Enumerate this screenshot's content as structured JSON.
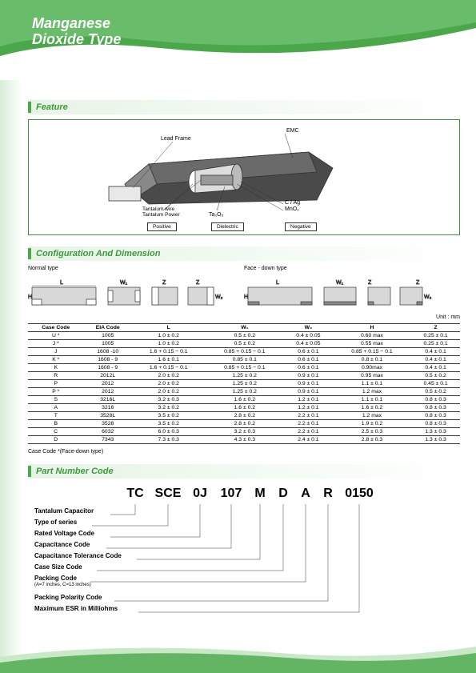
{
  "header": {
    "title_line1": "Manganese",
    "title_line2": "Dioxide Type"
  },
  "sections": {
    "feature": "Feature",
    "config": "Configuration And Dimension",
    "partcode": "Part Number Code"
  },
  "feature": {
    "labels": {
      "leadframe": "Lead Frame",
      "emc": "EMC",
      "tantalum_wire": "Tantalum wire",
      "tantalum_power": "Tantalum Power",
      "ta2o5": "Ta₂O₅",
      "cag": "C / Ag",
      "mno2": "MnO₂"
    },
    "terminals": {
      "positive": "Positive",
      "dielectric": "Dielectric",
      "negative": "Negative"
    }
  },
  "config": {
    "normal_label": "Normal type",
    "facedown_label": "Face - down type",
    "dim_L": "L",
    "dim_W1": "W₁",
    "dim_W2": "W₂",
    "dim_Z": "Z",
    "dim_H": "H",
    "unit": "Unit : mm"
  },
  "table": {
    "headers": [
      "Case Code",
      "EIA Code",
      "L",
      "W₁",
      "W₂",
      "H",
      "Z"
    ],
    "rows": [
      [
        "U *",
        "1005",
        "1.0 ± 0.2",
        "0.5 ± 0.2",
        "0.4 ± 0.05",
        "0.60 max",
        "0.25 ± 0.1"
      ],
      [
        "J *",
        "1005",
        "1.0 ± 0.2",
        "0.5 ± 0.2",
        "0.4 ± 0.05",
        "0.55 max",
        "0.25 ± 0.1"
      ],
      [
        "J",
        "1608 -10",
        "1.6 + 0.15 − 0.1",
        "0.85 + 0.15 − 0.1",
        "0.6 ± 0.1",
        "0.85 + 0.15 − 0.1",
        "0.4 ± 0.1"
      ],
      [
        "K *",
        "1608 - 9",
        "1.6 ± 0.1",
        "0.85 ± 0.1",
        "0.6 ± 0.1",
        "0.8 ± 0.1",
        "0.4 ± 0.1"
      ],
      [
        "K",
        "1608 - 9",
        "1.6 + 0.15 − 0.1",
        "0.85 + 0.15 − 0.1",
        "0.6 ± 0.1",
        "0.90max",
        "0.4 ± 0.1"
      ],
      [
        "R",
        "2012L",
        "2.0 ± 0.2",
        "1.25 ± 0.2",
        "0.9 ± 0.1",
        "0.95 max",
        "0.5 ± 0.2"
      ],
      [
        "P",
        "2012",
        "2.0 ± 0.2",
        "1.25 ± 0.2",
        "0.9 ± 0.1",
        "1.1 ± 0.1",
        "0.45 ± 0.1"
      ],
      [
        "P *",
        "2012",
        "2.0 ± 0.2",
        "1.25 ± 0.2",
        "0.9 ± 0.1",
        "1.2 max",
        "0.5 ± 0.2"
      ],
      [
        "S",
        "3216L",
        "3.2 ± 0.3",
        "1.6 ± 0.2",
        "1.2 ± 0.1",
        "1.1 ± 0.1",
        "0.8 ± 0.3"
      ],
      [
        "A",
        "3216",
        "3.2 ± 0.2",
        "1.6 ± 0.2",
        "1.2 ± 0.1",
        "1.6 ± 0.2",
        "0.8 ± 0.3"
      ],
      [
        "T",
        "3528L",
        "3.5 ± 0.2",
        "2.8 ± 0.2",
        "2.2 ± 0.1",
        "1.2 max",
        "0.8 ± 0.3"
      ],
      [
        "B",
        "3528",
        "3.5 ± 0.2",
        "2.8 ± 0.2",
        "2.2 ± 0.1",
        "1.9 ± 0.2",
        "0.8 ± 0.3"
      ],
      [
        "C",
        "6032",
        "6.0 ± 0.3",
        "3.2 ± 0.3",
        "2.2 ± 0.1",
        "2.5 ± 0.3",
        "1.3 ± 0.3"
      ],
      [
        "D",
        "7343",
        "7.3 ± 0.3",
        "4.3 ± 0.3",
        "2.4 ± 0.1",
        "2.8 ± 0.3",
        "1.3 ± 0.3"
      ]
    ],
    "note": "Case Code *(Face-down type)"
  },
  "partcode": {
    "segments": [
      "TC",
      "SCE",
      "0J",
      "107",
      "M",
      "D",
      "A",
      "R",
      "0150"
    ],
    "seg_widths": [
      38,
      44,
      36,
      42,
      30,
      28,
      28,
      28,
      50
    ],
    "labels": [
      "Tantalum Capacitor",
      "Type of series",
      "Rated Voltage Code",
      "Capacitance Code",
      "Capacitance Tolerance Code",
      "Case Size Code",
      "Packing Code",
      "Packing Polarity Code",
      "Maximum ESR in Milliohms"
    ],
    "packing_sublabel": "(A=7 inches, C=13 inches)"
  },
  "colors": {
    "green_primary": "#3a9a3a",
    "green_light": "#7ec97e",
    "green_pale": "#e6f4e6"
  }
}
